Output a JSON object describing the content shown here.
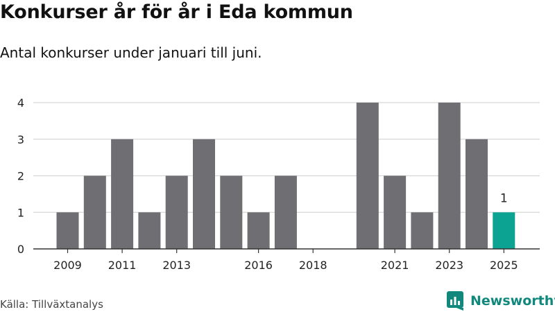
{
  "header": {
    "title": "Konkurser år för år i Eda kommun",
    "subtitle": "Antal konkurser under januari till juni."
  },
  "footer": {
    "source": "Källa: Tillväxtanalys",
    "brand": "Newsworthy"
  },
  "colors": {
    "bar": "#6e6e73",
    "highlight": "#0ca392",
    "grid": "#d6d6d6",
    "axis": "#333333",
    "brand": "#10897c"
  },
  "chart_data": {
    "type": "bar",
    "categories": [
      "2009",
      "2010",
      "2011",
      "2012",
      "2013",
      "2014",
      "2015",
      "2016",
      "2017",
      "2018",
      "2019",
      "2020",
      "2021",
      "2022",
      "2023",
      "2024",
      "2025"
    ],
    "values": [
      1,
      2,
      3,
      1,
      2,
      3,
      2,
      1,
      2,
      0,
      0,
      4,
      2,
      1,
      4,
      3,
      1
    ],
    "x_tick_labels": [
      "2009",
      "2011",
      "2013",
      "2016",
      "2018",
      "2021",
      "2023",
      "2025"
    ],
    "y_ticks": [
      0,
      1,
      2,
      3,
      4
    ],
    "ylim": [
      0,
      4
    ],
    "highlight_category": "2025",
    "data_labels": [
      {
        "category": "2025",
        "text": "1"
      }
    ],
    "grid": true,
    "title": "Konkurser år för år i Eda kommun",
    "subtitle": "Antal konkurser under januari till juni.",
    "xlabel": "",
    "ylabel": ""
  }
}
